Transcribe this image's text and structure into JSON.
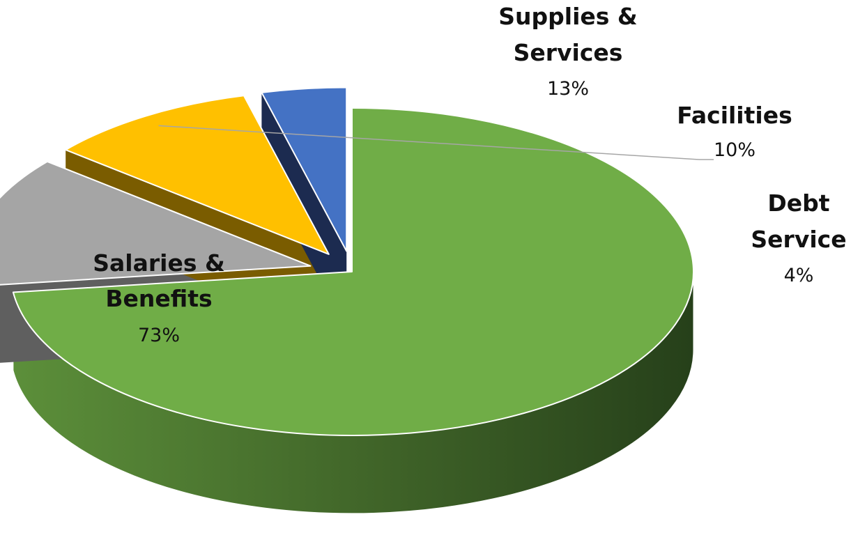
{
  "chart_data": {
    "type": "pie",
    "title": "",
    "legend": "none",
    "labels": [
      "Salaries & Benefits",
      "Supplies & Services",
      "Facilities",
      "Debt Service"
    ],
    "values": [
      73,
      13,
      10,
      4
    ],
    "value_labels": [
      "73%",
      "13%",
      "10%",
      "4%"
    ],
    "colors": [
      "#70ad47",
      "#a5a5a5",
      "#ffc000",
      "#4472c4"
    ],
    "side_colors": [
      "#3f6328",
      "#5f5f5f",
      "#7a5c00",
      "#1c2b50"
    ],
    "exploded": [
      false,
      true,
      true,
      true
    ]
  }
}
